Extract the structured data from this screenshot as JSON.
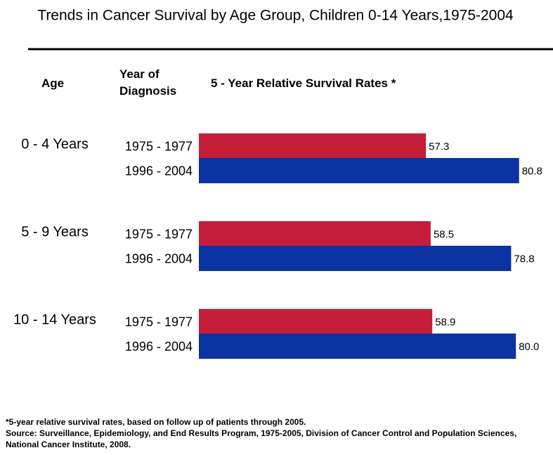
{
  "chart_data": {
    "type": "bar",
    "orientation": "horizontal",
    "title": "Trends in Cancer Survival by Age Group, Children 0-14 Years,1975-2004",
    "column_headers": [
      "Age",
      "Year of Diagnosis",
      "5 - Year Relative Survival Rates *"
    ],
    "categories": [
      "0 - 4 Years",
      "5 - 9 Years",
      "10 - 14 Years"
    ],
    "series": [
      {
        "name": "1975 - 1977",
        "color": "#c41e3a",
        "values": [
          57.3,
          58.5,
          58.9
        ]
      },
      {
        "name": "1996 - 2004",
        "color": "#0b33a2",
        "values": [
          80.8,
          78.8,
          80.0
        ],
        "value_labels": [
          "80.8",
          "78.8",
          "80.0"
        ]
      }
    ],
    "footnote": "*5-year relative survival rates, based on follow up of patients through 2005.",
    "source": "Source: Surveillance, Epidemiology, and End Results Program, 1975-2005, Division of Cancer Control and Population Sciences, National Cancer Institute, 2008."
  }
}
